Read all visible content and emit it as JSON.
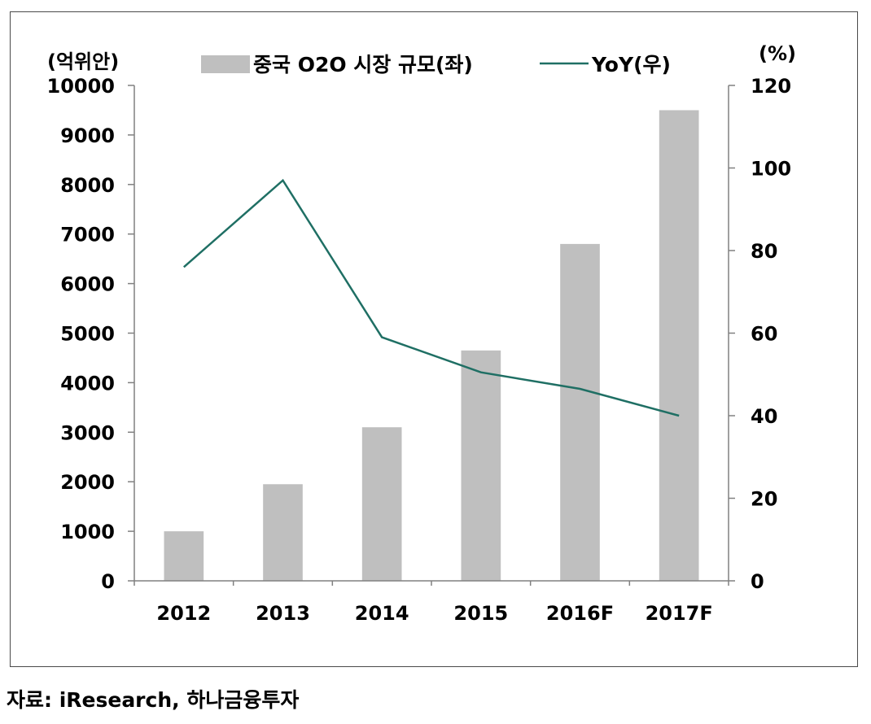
{
  "chart_data": {
    "type": "bar+line",
    "categories": [
      "2012",
      "2013",
      "2014",
      "2015",
      "2016F",
      "2017F"
    ],
    "series": [
      {
        "name": "중국 O2O 시장 규모(좌)",
        "type": "bar",
        "axis": "left",
        "color": "#bfbfbf",
        "values": [
          1000,
          1950,
          3100,
          4650,
          6800,
          9500
        ]
      },
      {
        "name": "YoY(우)",
        "type": "line",
        "axis": "right",
        "color": "#1f6f64",
        "values": [
          76,
          97,
          59,
          50.5,
          46.5,
          40
        ]
      }
    ],
    "y_left": {
      "label": "(억위안)",
      "range": [
        0,
        10000
      ],
      "ticks": [
        "0",
        "1000",
        "2000",
        "3000",
        "4000",
        "5000",
        "6000",
        "7000",
        "8000",
        "9000",
        "10000"
      ]
    },
    "y_right": {
      "label": "(%)",
      "range": [
        0,
        120
      ],
      "ticks": [
        "0",
        "20",
        "40",
        "60",
        "80",
        "100",
        "120"
      ]
    },
    "legend_position": "top-center",
    "grid": false
  },
  "source": "자료: iResearch, 하나금융투자"
}
